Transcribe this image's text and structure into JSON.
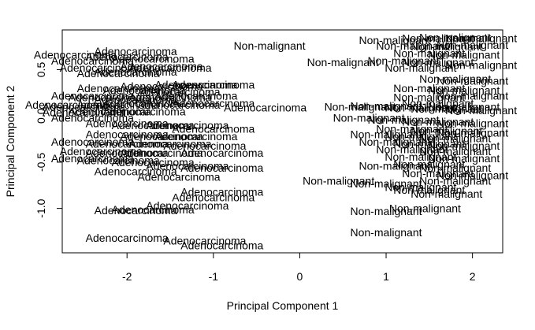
{
  "chart_data": {
    "type": "scatter",
    "title": "",
    "xlabel": "Principal Component 1",
    "ylabel": "Principal Component 2",
    "xlim": [
      -2.75,
      2.35
    ],
    "ylim": [
      -1.48,
      0.93
    ],
    "x_ticks": [
      -2,
      -1,
      0,
      1,
      2
    ],
    "y_ticks": [
      -1.0,
      -0.5,
      0.0,
      0.5
    ],
    "x_tick_labels": [
      "-2",
      "-1",
      "0",
      "1",
      "2"
    ],
    "y_tick_labels": [
      "-1.0",
      "-0.5",
      "0.0",
      "0.5"
    ],
    "grid": false,
    "legend": "none",
    "marker": "text-label",
    "series": [
      {
        "label": "Adenocarcinoma",
        "points": [
          [
            -1.9,
            0.7
          ],
          [
            -2.6,
            0.66
          ],
          [
            -2.4,
            0.6
          ],
          [
            -2.0,
            0.64
          ],
          [
            -1.7,
            0.62
          ],
          [
            -2.3,
            0.52
          ],
          [
            -1.6,
            0.54
          ],
          [
            -1.5,
            0.52
          ],
          [
            -2.1,
            0.46
          ],
          [
            -1.9,
            0.48
          ],
          [
            -1.2,
            0.34
          ],
          [
            -1.0,
            0.34
          ],
          [
            -1.6,
            0.32
          ],
          [
            -2.1,
            0.3
          ],
          [
            -1.8,
            0.28
          ],
          [
            -1.4,
            0.26
          ],
          [
            -2.4,
            0.22
          ],
          [
            -2.2,
            0.2
          ],
          [
            -1.9,
            0.18
          ],
          [
            -1.5,
            0.2
          ],
          [
            -1.2,
            0.22
          ],
          [
            -2.7,
            0.12
          ],
          [
            -2.5,
            0.1
          ],
          [
            -2.1,
            0.12
          ],
          [
            -1.8,
            0.14
          ],
          [
            -1.4,
            0.12
          ],
          [
            -1.0,
            0.14
          ],
          [
            -0.4,
            0.09
          ],
          [
            -2.5,
            0.04
          ],
          [
            -2.2,
            0.05
          ],
          [
            -1.8,
            0.05
          ],
          [
            -2.4,
            -0.02
          ],
          [
            -2.0,
            -0.08
          ],
          [
            -1.7,
            -0.1
          ],
          [
            -1.3,
            -0.1
          ],
          [
            -1.0,
            -0.14
          ],
          [
            -2.0,
            -0.2
          ],
          [
            -1.6,
            -0.22
          ],
          [
            -1.2,
            -0.22
          ],
          [
            -2.4,
            -0.28
          ],
          [
            -2.0,
            -0.3
          ],
          [
            -1.5,
            -0.3
          ],
          [
            -1.1,
            -0.32
          ],
          [
            -2.3,
            -0.38
          ],
          [
            -2.0,
            -0.4
          ],
          [
            -1.6,
            -0.4
          ],
          [
            -0.9,
            -0.4
          ],
          [
            -2.4,
            -0.46
          ],
          [
            -2.1,
            -0.48
          ],
          [
            -1.7,
            -0.5
          ],
          [
            -1.3,
            -0.54
          ],
          [
            -0.9,
            -0.56
          ],
          [
            -1.9,
            -0.6
          ],
          [
            -1.4,
            -0.66
          ],
          [
            -0.9,
            -0.82
          ],
          [
            -1.0,
            -0.88
          ],
          [
            -1.3,
            -0.97
          ],
          [
            -1.9,
            -1.02
          ],
          [
            -1.7,
            -1.01
          ],
          [
            -2.0,
            -1.32
          ],
          [
            -1.1,
            -1.35
          ],
          [
            -0.9,
            -1.4
          ]
        ]
      },
      {
        "label": "Non-malignant",
        "points": [
          [
            -0.35,
            0.76
          ],
          [
            0.5,
            0.58
          ],
          [
            1.1,
            0.82
          ],
          [
            1.6,
            0.84
          ],
          [
            1.8,
            0.85
          ],
          [
            2.1,
            0.84
          ],
          [
            1.3,
            0.76
          ],
          [
            1.7,
            0.75
          ],
          [
            2.0,
            0.77
          ],
          [
            1.5,
            0.68
          ],
          [
            1.9,
            0.66
          ],
          [
            1.2,
            0.6
          ],
          [
            1.6,
            0.58
          ],
          [
            2.1,
            0.55
          ],
          [
            1.4,
            0.52
          ],
          [
            1.8,
            0.4
          ],
          [
            2.0,
            0.38
          ],
          [
            1.5,
            0.3
          ],
          [
            1.9,
            0.28
          ],
          [
            1.5,
            0.2
          ],
          [
            2.0,
            0.22
          ],
          [
            1.6,
            0.14
          ],
          [
            1.9,
            0.1
          ],
          [
            0.7,
            0.1
          ],
          [
            1.0,
            0.11
          ],
          [
            1.4,
            0.09
          ],
          [
            1.7,
            0.08
          ],
          [
            2.1,
            0.06
          ],
          [
            0.8,
            -0.02
          ],
          [
            1.2,
            -0.04
          ],
          [
            1.6,
            -0.06
          ],
          [
            2.0,
            -0.08
          ],
          [
            1.3,
            -0.14
          ],
          [
            1.7,
            -0.16
          ],
          [
            2.0,
            -0.18
          ],
          [
            1.0,
            -0.2
          ],
          [
            1.4,
            -0.22
          ],
          [
            1.8,
            -0.24
          ],
          [
            1.1,
            -0.28
          ],
          [
            1.5,
            -0.3
          ],
          [
            1.9,
            -0.32
          ],
          [
            1.3,
            -0.36
          ],
          [
            1.8,
            -0.38
          ],
          [
            1.4,
            -0.44
          ],
          [
            1.9,
            -0.46
          ],
          [
            1.1,
            -0.54
          ],
          [
            1.5,
            -0.52
          ],
          [
            1.8,
            -0.56
          ],
          [
            1.6,
            -0.62
          ],
          [
            2.0,
            -0.64
          ],
          [
            1.8,
            -0.7
          ],
          [
            0.45,
            -0.7
          ],
          [
            1.0,
            -0.73
          ],
          [
            1.4,
            -0.77
          ],
          [
            1.5,
            -0.8
          ],
          [
            1.7,
            -0.84
          ],
          [
            1.45,
            -1.0
          ],
          [
            1.0,
            -1.03
          ],
          [
            1.0,
            -1.26
          ]
        ]
      }
    ]
  }
}
